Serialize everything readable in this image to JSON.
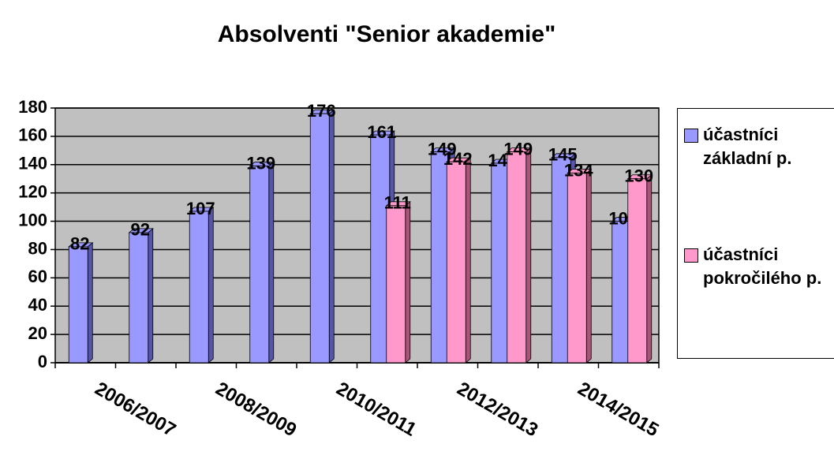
{
  "chart_data": {
    "type": "bar",
    "title": "Absolventi \"Senior akademie\"",
    "categories": [
      null,
      "2006/2007",
      null,
      "2008/2009",
      null,
      "2010/2011",
      null,
      "2012/2013",
      null,
      "2014/2015"
    ],
    "series": [
      {
        "name": "účastníci základní p.",
        "color": "#9999ff",
        "values": [
          82,
          92,
          107,
          139,
          176,
          161,
          149,
          141,
          145,
          100
        ]
      },
      {
        "name": "účastníci pokročilého p.",
        "color": "#ff99cc",
        "values": [
          null,
          null,
          null,
          null,
          null,
          111,
          142,
          149,
          134,
          130
        ]
      }
    ],
    "ylim": [
      0,
      180
    ],
    "yticks": [
      0,
      20,
      40,
      60,
      80,
      100,
      120,
      140,
      160,
      180
    ],
    "grid": true
  }
}
